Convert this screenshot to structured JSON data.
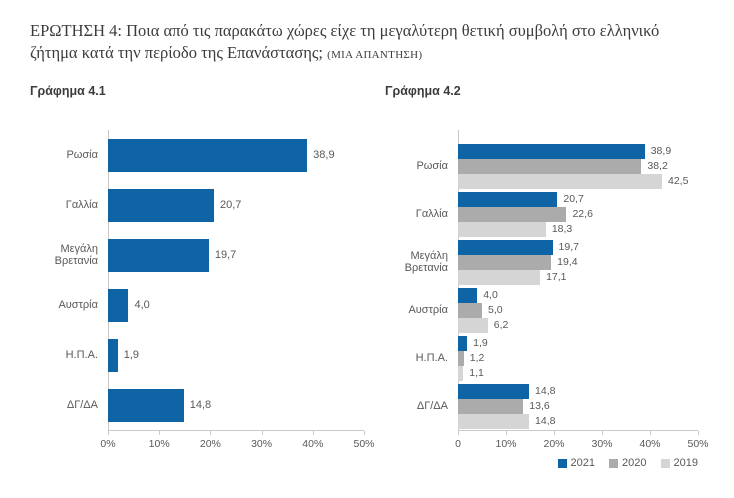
{
  "header": {
    "question": "ΕΡΩΤΗΣΗ 4: Ποια από τις παρακάτω χώρες είχε τη μεγαλύτερη θετική συμβολή στο ελληνικό ζήτημα κατά την περίοδο της Επανάστασης;",
    "answer_note": "(ΜΙΑ ΑΠΑΝΤΗΣΗ)"
  },
  "colors": {
    "bar_blue": "#0f64a5",
    "bar_gray_dark": "#ababab",
    "bar_gray_light": "#d5d5d5",
    "axis_line": "#c9c9c9",
    "label_gray": "#595959",
    "title_dark": "#3c3c3b"
  },
  "chart_data": [
    {
      "type": "bar",
      "orientation": "horizontal",
      "title": "Γράφημα 4.1",
      "categories": [
        "Ρωσία",
        "Γαλλία",
        "Μεγάλη Βρετανία",
        "Αυστρία",
        "Η.Π.Α.",
        "ΔΓ/ΔΑ"
      ],
      "values": [
        38.9,
        20.7,
        19.7,
        4.0,
        1.9,
        14.8
      ],
      "value_labels": [
        "38,9",
        "20,7",
        "19,7",
        "4,0",
        "1,9",
        "14,8"
      ],
      "bar_color": "#0f64a5",
      "xlim": [
        0,
        50
      ],
      "x_ticks": [
        "0%",
        "10%",
        "20%",
        "30%",
        "40%",
        "50%"
      ],
      "grid": false,
      "legend": null
    },
    {
      "type": "bar",
      "orientation": "horizontal",
      "title": "Γράφημα 4.2",
      "categories": [
        "Ρωσία",
        "Γαλλία",
        "Μεγάλη Βρετανία",
        "Αυστρία",
        "Η.Π.Α.",
        "ΔΓ/ΔΑ"
      ],
      "series": [
        {
          "name": "2021",
          "color": "#0f64a5",
          "values": [
            38.9,
            20.7,
            19.7,
            4.0,
            1.9,
            14.8
          ],
          "value_labels": [
            "38,9",
            "20,7",
            "19,7",
            "4,0",
            "1,9",
            "14,8"
          ]
        },
        {
          "name": "2020",
          "color": "#ababab",
          "values": [
            38.2,
            22.6,
            19.4,
            5.0,
            1.2,
            13.6
          ],
          "value_labels": [
            "38,2",
            "22,6",
            "19,4",
            "5,0",
            "1,2",
            "13,6"
          ]
        },
        {
          "name": "2019",
          "color": "#d5d5d5",
          "values": [
            42.5,
            18.3,
            17.1,
            6.2,
            1.1,
            14.8
          ],
          "value_labels": [
            "42,5",
            "18,3",
            "17,1",
            "6,2",
            "1,1",
            "14,8"
          ]
        }
      ],
      "xlim": [
        0,
        50
      ],
      "x_ticks": [
        "0",
        "10%",
        "20%",
        "30%",
        "40%",
        "50%"
      ],
      "grid": false,
      "legend": {
        "position": "bottom-right",
        "entries": [
          "2021",
          "2020",
          "2019"
        ]
      }
    }
  ]
}
